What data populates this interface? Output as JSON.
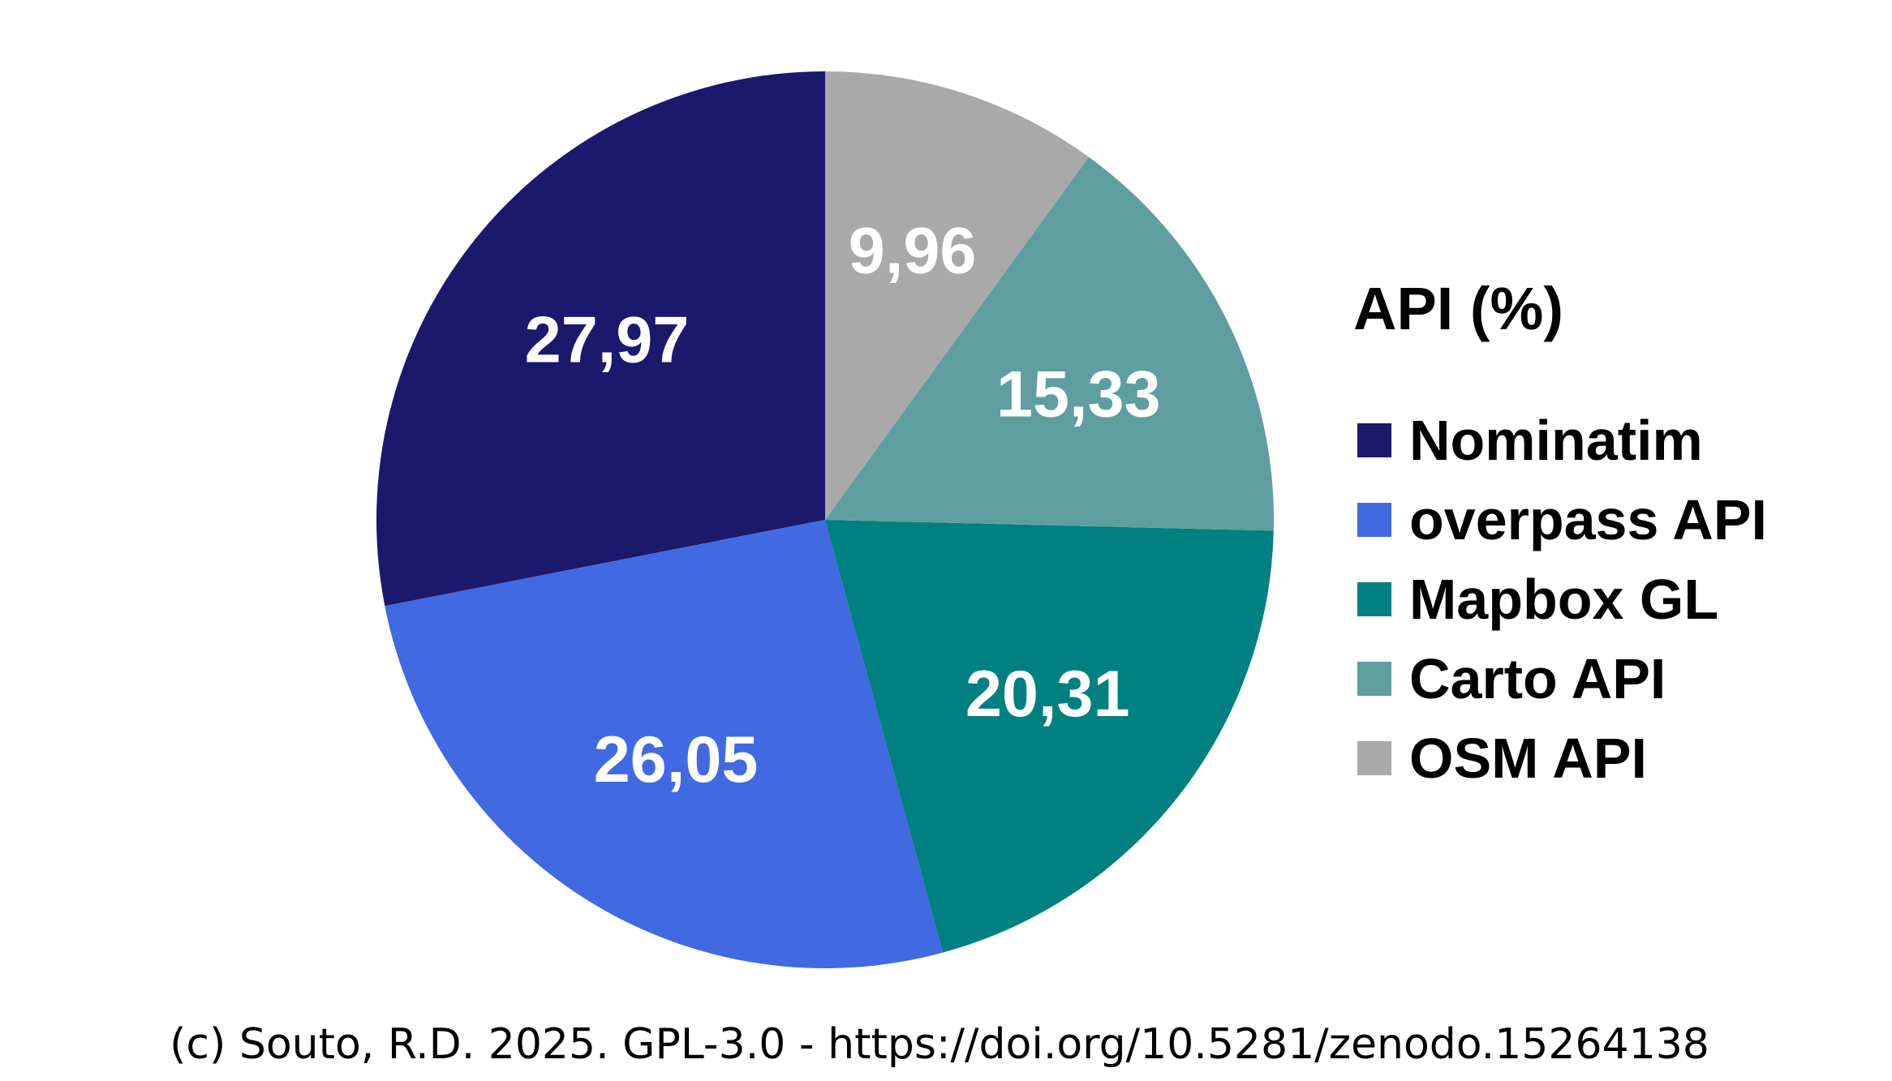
{
  "chart_data": {
    "type": "pie",
    "categories": [
      "Nominatim",
      "overpass API",
      "Mapbox GL",
      "Carto API",
      "OSM API"
    ],
    "values": [
      27.97,
      26.05,
      20.31,
      15.33,
      9.96
    ],
    "labels": [
      "27,97",
      "26,05",
      "20,31",
      "15,33",
      "9,96"
    ],
    "colors": [
      "#1b196b",
      "#4169e1",
      "#008080",
      "#5f9ea0",
      "#a9a9a9"
    ],
    "legend_title": "API (%)",
    "legend_position": "right",
    "start": "top",
    "direction": "counterclockwise"
  },
  "footer": {
    "credit": "(c) Souto, R.D. 2025. GPL-3.0 - https://doi.org/10.5281/zenodo.15264138"
  }
}
